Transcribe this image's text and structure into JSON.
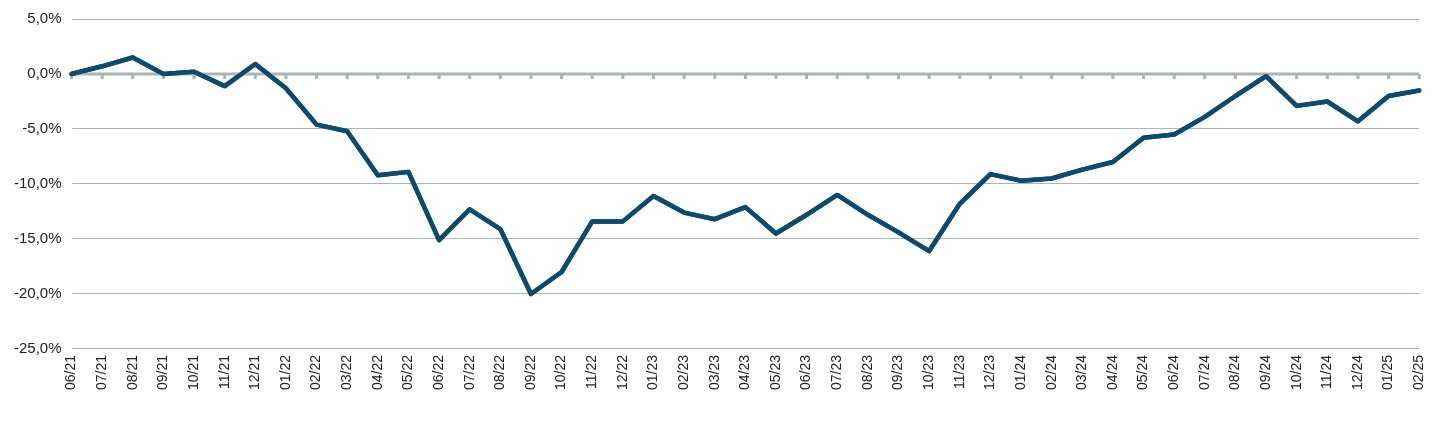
{
  "chart_data": {
    "type": "line",
    "categories": [
      "06/21",
      "07/21",
      "08/21",
      "09/21",
      "10/21",
      "11/21",
      "12/21",
      "01/22",
      "02/22",
      "03/22",
      "04/22",
      "05/22",
      "06/22",
      "07/22",
      "08/22",
      "09/22",
      "10/22",
      "11/22",
      "12/22",
      "01/23",
      "02/23",
      "03/23",
      "04/23",
      "05/23",
      "06/23",
      "07/23",
      "08/23",
      "09/23",
      "10/23",
      "11/23",
      "12/23",
      "01/24",
      "02/24",
      "03/24",
      "04/24",
      "05/24",
      "06/24",
      "07/24",
      "08/24",
      "09/24",
      "10/24",
      "11/24",
      "12/24",
      "01/25",
      "02/25"
    ],
    "series": [
      {
        "color": "#0d4a6b",
        "values": [
          0.0,
          0.7,
          1.5,
          0.0,
          0.2,
          -1.1,
          0.9,
          -1.3,
          -4.6,
          -5.2,
          -9.2,
          -8.9,
          -15.1,
          -12.3,
          -14.1,
          -20.0,
          -18.0,
          -13.4,
          -13.4,
          -11.1,
          -12.6,
          -13.2,
          -12.1,
          -14.5,
          -12.8,
          -11.0,
          -12.8,
          -14.4,
          -16.1,
          -11.8,
          -9.1,
          -9.7,
          -9.5,
          -8.7,
          -8.0,
          -5.8,
          -5.5,
          -3.9,
          -2.0,
          -0.2,
          -2.9,
          -2.5,
          -4.3,
          -2.0,
          -1.5
        ]
      }
    ],
    "ylim": [
      -25,
      5
    ],
    "yticks": [
      {
        "value": -25,
        "label": "-25,0%"
      },
      {
        "value": -20,
        "label": "-20,0%"
      },
      {
        "value": -15,
        "label": "-15,0%"
      },
      {
        "value": -10,
        "label": "-10,0%"
      },
      {
        "value": -5,
        "label": "-5,0%"
      },
      {
        "value": 0,
        "label": "0,0%"
      },
      {
        "value": 5,
        "label": "5,0%"
      }
    ],
    "grid": "y",
    "marker": "none",
    "line_style": "solid",
    "legend": false
  }
}
